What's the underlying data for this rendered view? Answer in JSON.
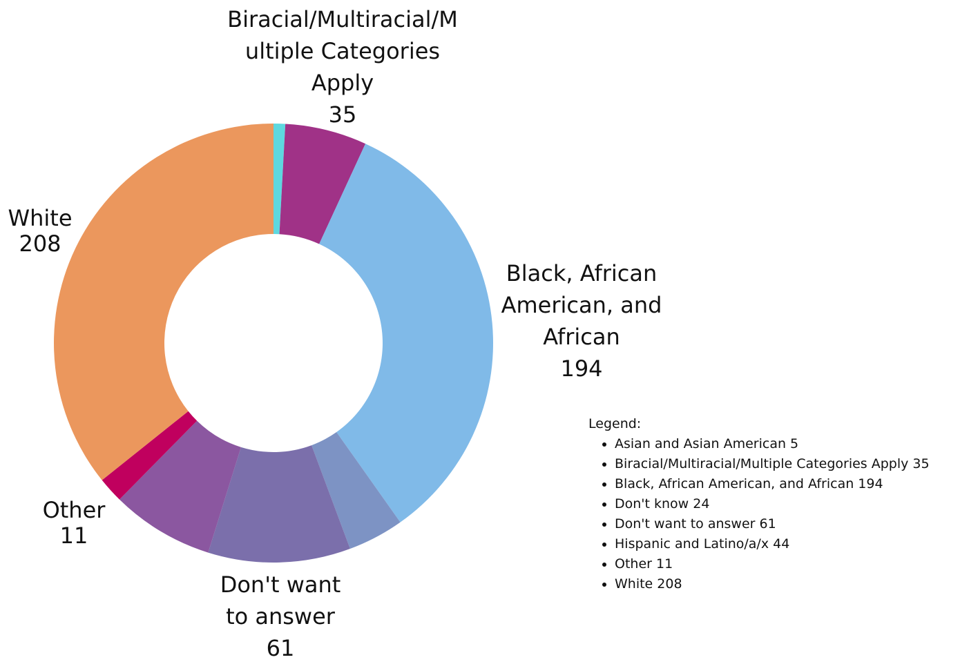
{
  "chart_data": {
    "type": "pie",
    "donut": true,
    "categories": [
      "Asian and Asian American",
      "Biracial/Multiracial/Multiple Categories Apply",
      "Black, African American, and African",
      "Don't know",
      "Don't want to answer",
      "Hispanic and Latino/a/x",
      "Other",
      "White"
    ],
    "values": [
      5,
      35,
      194,
      24,
      61,
      44,
      11,
      208
    ],
    "colors": [
      "#5ed8df",
      "#a03287",
      "#80bae8",
      "#7d93c4",
      "#7b6fab",
      "#8b57a0",
      "#c0005e",
      "#eb975d"
    ],
    "slice_labels": [
      "",
      "Biracial/Multiracial/M\nultiple Categories\nApply\n35",
      "Black, African\nAmerican, and\nAfrican\n194",
      "",
      "Don't want\nto answer\n61",
      "",
      "Other\n11",
      "White\n208"
    ],
    "legend_title": "Legend:",
    "legend_entries": [
      "Asian and Asian American 5",
      "Biracial/Multiracial/Multiple Categories Apply 35",
      "Black, African American, and African 194",
      "Don't know 24",
      "Don't want to answer 61",
      "Hispanic and Latino/a/x 44",
      "Other 11",
      "White 208"
    ],
    "legend_placement": "bottom-right"
  }
}
